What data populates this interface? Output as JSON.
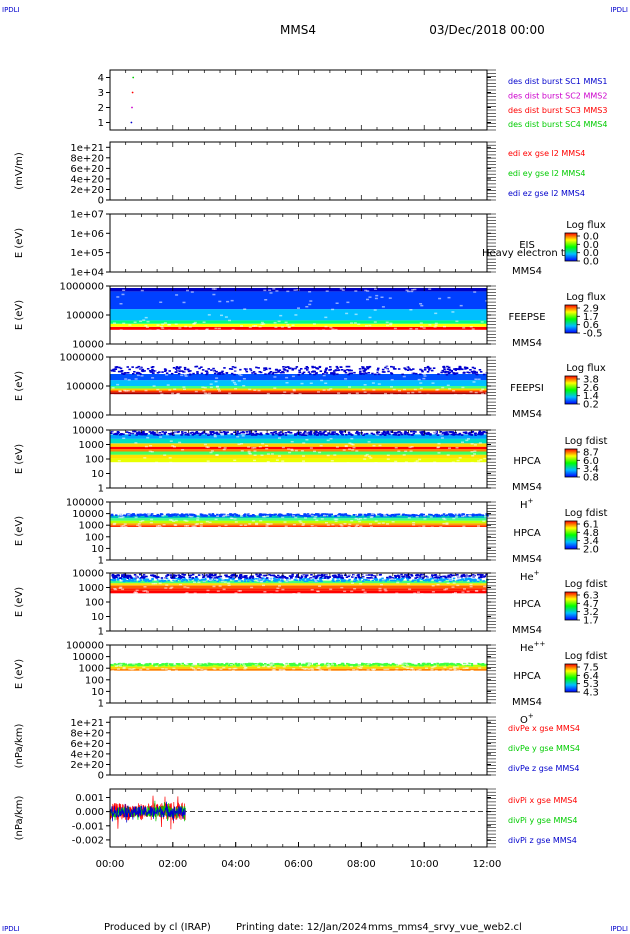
{
  "corner_label": "IPDLI",
  "header": {
    "mission": "MMS4",
    "datetime": "03/Dec/2018 00:00"
  },
  "footer": {
    "produced_by": "Produced by cl (IRAP)",
    "printing_date": "Printing date: 12/Jan/2024",
    "filename": "mms_mms4_srvy_vue_web2.cl"
  },
  "colors": {
    "red": "#ff0000",
    "green": "#00cc00",
    "blue": "#0000cc",
    "magenta": "#cc00cc",
    "black": "#000000"
  },
  "chart_data": [
    {
      "type": "scatter",
      "ylim": [
        0.5,
        4.5
      ],
      "ytick_labels": [
        "4",
        "3",
        "2",
        "1"
      ],
      "ytick_values": [
        4,
        3,
        2,
        1
      ],
      "series": [
        {
          "name": "des dist burst SC1 MMS1",
          "color": "#0000cc",
          "points": [
            [
              0.68,
              1
            ]
          ]
        },
        {
          "name": "des dist burst SC2 MMS2",
          "color": "#cc00cc",
          "points": [
            [
              0.7,
              2
            ]
          ]
        },
        {
          "name": "des dist burst SC3 MMS3",
          "color": "#ff0000",
          "points": [
            [
              0.72,
              3
            ]
          ]
        },
        {
          "name": "des dist burst SC4 MMS4",
          "color": "#00cc00",
          "points": [
            [
              0.74,
              4
            ]
          ]
        }
      ]
    },
    {
      "type": "line",
      "ylabel": "(mV/m)",
      "ylim": [
        0,
        1.1e+21
      ],
      "ytick_labels": [
        "1e+21",
        "8e+20",
        "6e+20",
        "4e+20",
        "2e+20",
        "0"
      ],
      "ytick_values": [
        1e+21,
        8e+20,
        6e+20,
        4e+20,
        2e+20,
        0
      ],
      "series": [
        {
          "name": "edi ex gse l2 MMS4",
          "color": "#ff0000",
          "values": []
        },
        {
          "name": "edi ey gse l2 MMS4",
          "color": "#00cc00",
          "values": []
        },
        {
          "name": "edi ez gse l2 MMS4",
          "color": "#0000cc",
          "values": []
        }
      ]
    },
    {
      "type": "heatmap",
      "ylabel": "E (eV)",
      "ylim": [
        10000.0,
        10000000.0
      ],
      "scale": "log",
      "ytick_labels": [
        "1e+07",
        "1e+06",
        "1e+05",
        "1e+04"
      ],
      "ytick_values": [
        10000000.0,
        1000000.0,
        100000.0,
        10000.0
      ],
      "instrument": "EIS",
      "extra_label": "Heavy electron to",
      "spacecraft": "MMS4",
      "colorbar_title": "Log flux",
      "colorbar_ticks": [
        "0.0",
        "0.0",
        "0.0",
        "0.0"
      ],
      "bands": []
    },
    {
      "type": "heatmap",
      "ylabel": "E (eV)",
      "ylim": [
        10000.0,
        1000000.0
      ],
      "scale": "log",
      "ytick_labels": [
        "1000000",
        "100000",
        "10000"
      ],
      "ytick_values": [
        1000000.0,
        100000.0,
        10000.0
      ],
      "instrument": "FEEPSE",
      "spacecraft": "MMS4",
      "colorbar_title": "Log flux",
      "colorbar_ticks": [
        "2.9",
        "1.7",
        "0.6",
        "-0.5"
      ],
      "bands": [
        {
          "lo": 31000.0,
          "hi": 39000.0,
          "color": "#ff0000"
        },
        {
          "lo": 39000.0,
          "hi": 50000.0,
          "color": "#ffff00"
        },
        {
          "lo": 50000.0,
          "hi": 65000.0,
          "color": "#00ff80"
        },
        {
          "lo": 65000.0,
          "hi": 160000.0,
          "color": "#00bfff"
        },
        {
          "lo": 160000.0,
          "hi": 650000.0,
          "color": "#0040ff"
        },
        {
          "lo": 650000.0,
          "hi": 850000.0,
          "color": "#0000c0"
        }
      ]
    },
    {
      "type": "heatmap",
      "ylabel": "E (eV)",
      "ylim": [
        10000.0,
        1000000.0
      ],
      "scale": "log",
      "ytick_labels": [
        "1000000",
        "100000",
        "10000"
      ],
      "ytick_values": [
        1000000.0,
        100000.0,
        10000.0
      ],
      "instrument": "FEEPSI",
      "spacecraft": "MMS4",
      "colorbar_title": "Log flux",
      "colorbar_ticks": [
        "3.8",
        "2.6",
        "1.4",
        "0.2"
      ],
      "bands": [
        {
          "lo": 52000.0,
          "hi": 60000.0,
          "color": "#a00000"
        },
        {
          "lo": 60000.0,
          "hi": 70000.0,
          "color": "#ff3000"
        },
        {
          "lo": 70000.0,
          "hi": 82000.0,
          "color": "#ffd000"
        },
        {
          "lo": 82000.0,
          "hi": 100000.0,
          "color": "#40ff80"
        },
        {
          "lo": 100000.0,
          "hi": 160000.0,
          "color": "#00c0ff"
        },
        {
          "lo": 160000.0,
          "hi": 260000.0,
          "color": "#0050ff"
        },
        {
          "lo": 260000.0,
          "hi": 500000.0,
          "color": "#0000d0",
          "sparse": true
        }
      ]
    },
    {
      "type": "heatmap",
      "ylabel": "E (eV)",
      "ylim": [
        1,
        10000.0
      ],
      "scale": "log",
      "ytick_labels": [
        "10000",
        "1000",
        "100",
        "10",
        "1"
      ],
      "ytick_values": [
        10000.0,
        1000.0,
        100.0,
        10.0,
        1
      ],
      "instrument": "HPCA",
      "spacecraft": "MMS4",
      "species": "H",
      "species_charge": "+",
      "colorbar_title": "Log fdist",
      "colorbar_ticks": [
        "8.7",
        "6.0",
        "3.4",
        "0.8"
      ],
      "bands": [
        {
          "lo": 60,
          "hi": 110,
          "color": "#e8ff00"
        },
        {
          "lo": 110,
          "hi": 200,
          "color": "#ffe000"
        },
        {
          "lo": 200,
          "hi": 330,
          "color": "#40ff60"
        },
        {
          "lo": 330,
          "hi": 480,
          "color": "#ff8000"
        },
        {
          "lo": 480,
          "hi": 700,
          "color": "#ff0000"
        },
        {
          "lo": 700,
          "hi": 1200,
          "color": "#ffd000"
        },
        {
          "lo": 1200,
          "hi": 2500,
          "color": "#00e0c0"
        },
        {
          "lo": 2500,
          "hi": 5000,
          "color": "#00a0ff"
        },
        {
          "lo": 5000,
          "hi": 9000,
          "color": "#0000d0",
          "sparse": true
        }
      ]
    },
    {
      "type": "heatmap",
      "ylabel": "E (eV)",
      "ylim": [
        1,
        100000.0
      ],
      "scale": "log",
      "ytick_labels": [
        "100000",
        "10000",
        "1000",
        "100",
        "10",
        "1"
      ],
      "ytick_values": [
        100000.0,
        10000.0,
        1000.0,
        100.0,
        10.0,
        1
      ],
      "instrument": "HPCA",
      "spacecraft": "MMS4",
      "species": "He",
      "species_charge": "+",
      "colorbar_title": "Log fdist",
      "colorbar_ticks": [
        "6.1",
        "4.8",
        "3.4",
        "2.0"
      ],
      "bands": [
        {
          "lo": 700,
          "hi": 1000,
          "color": "#ff3000"
        },
        {
          "lo": 1000,
          "hi": 1500,
          "color": "#ffa000"
        },
        {
          "lo": 1500,
          "hi": 2500,
          "color": "#c0ff00"
        },
        {
          "lo": 2500,
          "hi": 4000,
          "color": "#40ff80"
        },
        {
          "lo": 4000,
          "hi": 7000,
          "color": "#00c0c0"
        },
        {
          "lo": 7000,
          "hi": 11000,
          "color": "#0040ff",
          "sparse": true
        }
      ]
    },
    {
      "type": "heatmap",
      "ylabel": "E (eV)",
      "ylim": [
        1,
        10000.0
      ],
      "scale": "log",
      "ytick_labels": [
        "10000",
        "1000",
        "100",
        "10",
        "1"
      ],
      "ytick_values": [
        10000.0,
        1000.0,
        100.0,
        10.0,
        1
      ],
      "instrument": "HPCA",
      "spacecraft": "MMS4",
      "species": "He",
      "species_charge": "++",
      "colorbar_title": "Log fdist",
      "colorbar_ticks": [
        "6.3",
        "4.7",
        "3.2",
        "1.7"
      ],
      "bands": [
        {
          "lo": 400,
          "hi": 600,
          "color": "#ff0000"
        },
        {
          "lo": 600,
          "hi": 900,
          "color": "#ff2000"
        },
        {
          "lo": 900,
          "hi": 1400,
          "color": "#ff6000"
        },
        {
          "lo": 1400,
          "hi": 2000,
          "color": "#ffe000"
        },
        {
          "lo": 2000,
          "hi": 3000,
          "color": "#40ff80"
        },
        {
          "lo": 3000,
          "hi": 5000,
          "color": "#00a0ff",
          "sparse": true
        },
        {
          "lo": 5000,
          "hi": 9000,
          "color": "#0000d0",
          "sparse": true
        }
      ]
    },
    {
      "type": "heatmap",
      "ylabel": "E (eV)",
      "ylim": [
        1,
        100000.0
      ],
      "scale": "log",
      "ytick_labels": [
        "100000",
        "10000",
        "1000",
        "100",
        "10",
        "1"
      ],
      "ytick_values": [
        100000.0,
        10000.0,
        1000.0,
        100.0,
        10.0,
        1
      ],
      "instrument": "HPCA",
      "spacecraft": "MMS4",
      "species": "O",
      "species_charge": "+",
      "colorbar_title": "Log fdist",
      "colorbar_ticks": [
        "7.5",
        "6.4",
        "5.3",
        "4.3"
      ],
      "bands": [
        {
          "lo": 600,
          "hi": 900,
          "color": "#ff8000"
        },
        {
          "lo": 900,
          "hi": 1300,
          "color": "#ffd000"
        },
        {
          "lo": 1300,
          "hi": 2000,
          "color": "#c0ff00"
        },
        {
          "lo": 2000,
          "hi": 3000,
          "color": "#40ff40",
          "sparse": true
        }
      ]
    },
    {
      "type": "line",
      "ylabel": "(nPa/km)",
      "ylim": [
        0,
        1.1e+21
      ],
      "ytick_labels": [
        "1e+21",
        "8e+20",
        "6e+20",
        "4e+20",
        "2e+20",
        "0"
      ],
      "ytick_values": [
        1e+21,
        8e+20,
        6e+20,
        4e+20,
        2e+20,
        0
      ],
      "series": [
        {
          "name": "divPe x gse MMS4",
          "color": "#ff0000",
          "values": []
        },
        {
          "name": "divPe y gse MMS4",
          "color": "#00cc00",
          "values": []
        },
        {
          "name": "divPe z gse MMS4",
          "color": "#0000cc",
          "values": []
        }
      ]
    },
    {
      "type": "line",
      "ylabel": "(nPa/km)",
      "ylim": [
        -0.0025,
        0.0016
      ],
      "ytick_labels": [
        "0.001",
        "0.000",
        "-0.001",
        "-0.002"
      ],
      "ytick_values": [
        0.001,
        0.0,
        -0.001,
        -0.002
      ],
      "data_extent_hours": [
        0.0,
        2.4
      ],
      "series": [
        {
          "name": "divPi x gse MMS4",
          "color": "#ff0000",
          "amplitude": 0.0006
        },
        {
          "name": "divPi y gse MMS4",
          "color": "#00cc00",
          "amplitude": 0.0004
        },
        {
          "name": "divPi z gse MMS4",
          "color": "#0000cc",
          "amplitude": 0.0004
        }
      ]
    }
  ],
  "xaxis": {
    "xlim_hours": [
      0,
      12
    ],
    "tick_labels": [
      "00:00",
      "02:00",
      "04:00",
      "06:00",
      "08:00",
      "10:00",
      "12:00"
    ],
    "tick_values": [
      0,
      2,
      4,
      6,
      8,
      10,
      12
    ]
  }
}
